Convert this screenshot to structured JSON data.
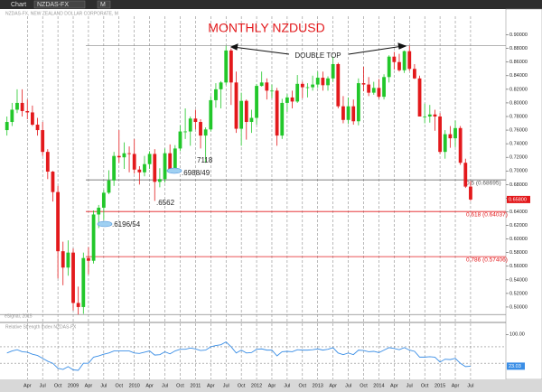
{
  "window": {
    "title": "Chart",
    "symbol": "NZDAS-FX",
    "interval": "M",
    "header": "NZDAS-FX, NEW ZEALAND DOLLAR CORPORATE, M",
    "watermark": "eSignal, 2015"
  },
  "chart_data": [
    {
      "type": "candlestick",
      "title": "MONTHLY NZDUSD",
      "categories": [
        null,
        null,
        null,
        null,
        "Apr",
        null,
        null,
        "Jul",
        null,
        null,
        "Oct",
        null,
        null,
        "2009",
        null,
        null,
        "Apr",
        null,
        null,
        "Jul",
        null,
        null,
        "Oct",
        null,
        null,
        "2010",
        null,
        null,
        "Apr",
        null,
        null,
        "Jul",
        null,
        null,
        "Oct",
        null,
        null,
        "2011",
        null,
        null,
        "Apr",
        null,
        null,
        "Jul",
        null,
        null,
        "Oct",
        null,
        null,
        "2012",
        null,
        null,
        "Apr",
        null,
        null,
        "Jul",
        null,
        null,
        "Oct",
        null,
        null,
        "2013",
        null,
        null,
        "Apr",
        null,
        null,
        "Jul",
        null,
        null,
        "Oct",
        null,
        null,
        "2014",
        null,
        null,
        "Apr",
        null,
        null,
        "Jul",
        null,
        null,
        "Oct",
        null,
        null,
        "2015",
        null,
        null,
        "Apr",
        null,
        null,
        "Jul"
      ],
      "open": [
        0.76,
        0.772,
        0.79,
        0.8,
        0.788,
        0.786,
        0.768,
        0.76,
        0.728,
        0.699,
        0.669,
        0.582,
        0.558,
        0.58,
        0.506,
        0.5,
        0.572,
        0.568,
        0.636,
        0.646,
        0.668,
        0.686,
        0.722,
        0.72,
        0.726,
        0.725,
        0.702,
        0.698,
        0.71,
        0.725,
        0.684,
        0.688,
        0.726,
        0.702,
        0.733,
        0.758,
        0.758,
        0.777,
        0.772,
        0.752,
        0.761,
        0.804,
        0.82,
        0.83,
        0.877,
        0.83,
        0.762,
        0.803,
        0.772,
        0.778,
        0.825,
        0.83,
        0.818,
        0.818,
        0.752,
        0.8,
        0.808,
        0.802,
        0.828,
        0.823,
        0.823,
        0.827,
        0.837,
        0.826,
        0.836,
        0.857,
        0.795,
        0.775,
        0.795,
        0.773,
        0.829,
        0.827,
        0.815,
        0.822,
        0.809,
        0.838,
        0.868,
        0.86,
        0.848,
        0.876,
        0.85,
        0.836,
        0.78,
        0.78,
        0.783,
        0.78,
        0.728,
        0.754,
        0.748,
        0.763,
        0.712,
        0.677
      ],
      "high": [
        0.78,
        0.8,
        0.82,
        0.82,
        0.805,
        0.796,
        0.778,
        0.772,
        0.732,
        0.7,
        0.678,
        0.596,
        0.598,
        0.586,
        0.53,
        0.58,
        0.588,
        0.642,
        0.65,
        0.672,
        0.701,
        0.728,
        0.76,
        0.742,
        0.736,
        0.747,
        0.707,
        0.722,
        0.729,
        0.732,
        0.704,
        0.733,
        0.739,
        0.738,
        0.767,
        0.792,
        0.78,
        0.79,
        0.776,
        0.764,
        0.81,
        0.829,
        0.832,
        0.884,
        0.88,
        0.846,
        0.815,
        0.805,
        0.79,
        0.828,
        0.846,
        0.836,
        0.827,
        0.822,
        0.806,
        0.813,
        0.818,
        0.841,
        0.831,
        0.829,
        0.84,
        0.846,
        0.846,
        0.839,
        0.868,
        0.859,
        0.81,
        0.808,
        0.805,
        0.836,
        0.853,
        0.838,
        0.831,
        0.835,
        0.842,
        0.87,
        0.875,
        0.872,
        0.877,
        0.884,
        0.857,
        0.84,
        0.799,
        0.797,
        0.79,
        0.785,
        0.76,
        0.766,
        0.774,
        0.766,
        0.718,
        0.685
      ],
      "low": [
        0.752,
        0.766,
        0.785,
        0.78,
        0.776,
        0.766,
        0.752,
        0.722,
        0.688,
        0.655,
        0.542,
        0.532,
        0.546,
        0.495,
        0.489,
        0.49,
        0.548,
        0.564,
        0.616,
        0.628,
        0.666,
        0.678,
        0.712,
        0.703,
        0.698,
        0.696,
        0.68,
        0.692,
        0.703,
        0.656,
        0.676,
        0.683,
        0.698,
        0.7,
        0.729,
        0.747,
        0.737,
        0.761,
        0.733,
        0.712,
        0.758,
        0.793,
        0.792,
        0.826,
        0.797,
        0.756,
        0.737,
        0.746,
        0.756,
        0.768,
        0.824,
        0.805,
        0.807,
        0.737,
        0.747,
        0.787,
        0.792,
        0.8,
        0.807,
        0.808,
        0.818,
        0.822,
        0.818,
        0.818,
        0.831,
        0.792,
        0.77,
        0.769,
        0.768,
        0.767,
        0.817,
        0.81,
        0.812,
        0.806,
        0.805,
        0.83,
        0.849,
        0.846,
        0.844,
        0.847,
        0.835,
        0.78,
        0.77,
        0.771,
        0.759,
        0.725,
        0.718,
        0.734,
        0.735,
        0.709,
        0.675,
        0.656
      ],
      "close": [
        0.772,
        0.79,
        0.8,
        0.788,
        0.786,
        0.768,
        0.76,
        0.728,
        0.699,
        0.669,
        0.582,
        0.558,
        0.58,
        0.506,
        0.5,
        0.572,
        0.568,
        0.636,
        0.646,
        0.668,
        0.686,
        0.722,
        0.72,
        0.726,
        0.725,
        0.702,
        0.698,
        0.71,
        0.725,
        0.684,
        0.688,
        0.726,
        0.702,
        0.733,
        0.758,
        0.758,
        0.777,
        0.772,
        0.752,
        0.761,
        0.804,
        0.82,
        0.83,
        0.877,
        0.83,
        0.762,
        0.803,
        0.772,
        0.778,
        0.825,
        0.83,
        0.818,
        0.818,
        0.752,
        0.8,
        0.808,
        0.802,
        0.828,
        0.823,
        0.823,
        0.827,
        0.837,
        0.826,
        0.836,
        0.857,
        0.795,
        0.775,
        0.795,
        0.773,
        0.829,
        0.827,
        0.815,
        0.822,
        0.809,
        0.838,
        0.868,
        0.86,
        0.848,
        0.876,
        0.85,
        0.836,
        0.78,
        0.78,
        0.783,
        0.78,
        0.728,
        0.754,
        0.748,
        0.763,
        0.712,
        0.677,
        0.658
      ],
      "up_color": "#22c72a",
      "down_color": "#e3191c",
      "last_label": {
        "value": 0.658,
        "label": "0.65800"
      },
      "ylim": [
        0.48,
        0.926
      ],
      "yticks": [
        {
          "value": 0.5,
          "label": "0.50000"
        },
        {
          "value": 0.52,
          "label": "0.52000"
        },
        {
          "value": 0.54,
          "label": "0.54000"
        },
        {
          "value": 0.56,
          "label": "0.56000"
        },
        {
          "value": 0.58,
          "label": "0.58000"
        },
        {
          "value": 0.6,
          "label": "0.60000"
        },
        {
          "value": 0.62,
          "label": "0.62000"
        },
        {
          "value": 0.64,
          "label": "0.64000"
        },
        {
          "value": 0.66,
          "label": "0.66000"
        },
        {
          "value": 0.68,
          "label": "0.68000"
        },
        {
          "value": 0.7,
          "label": "0.70000"
        },
        {
          "value": 0.72,
          "label": "0.72000"
        },
        {
          "value": 0.74,
          "label": "0.74000"
        },
        {
          "value": 0.76,
          "label": "0.76000"
        },
        {
          "value": 0.78,
          "label": "0.78000"
        },
        {
          "value": 0.8,
          "label": "0.80000"
        },
        {
          "value": 0.82,
          "label": "0.82000"
        },
        {
          "value": 0.84,
          "label": "0.84000"
        },
        {
          "value": 0.86,
          "label": "0.86000"
        },
        {
          "value": 0.88,
          "label": "0.88000"
        },
        {
          "value": 0.9,
          "label": "0.90000"
        }
      ],
      "fib_levels": [
        {
          "value": 0.68695,
          "label": "0.5 (0.68695)",
          "color": "#555555"
        },
        {
          "value": 0.64037,
          "label": "0.618 (0.64037)",
          "color": "#e3191c"
        },
        {
          "value": 0.57406,
          "label": "0.786 (0.57406)",
          "color": "#e3191c"
        }
      ],
      "reference_lines": [
        0.8843,
        0.489
      ],
      "annotations": [
        "DOUBLE TOP",
        "7118",
        ".6988/49",
        ".6562",
        ".6196/54"
      ]
    },
    {
      "type": "line",
      "name": "Relative Strength Index NZDAS-FX",
      "color": "#3a8ee6",
      "values": [
        55,
        60,
        63,
        58,
        57,
        52,
        49,
        42,
        35,
        30,
        18,
        15,
        22,
        14,
        13,
        30,
        30,
        45,
        48,
        52,
        55,
        60,
        60,
        60,
        60,
        55,
        54,
        57,
        60,
        50,
        51,
        58,
        53,
        60,
        64,
        64,
        67,
        65,
        61,
        62,
        70,
        73,
        75,
        82,
        70,
        55,
        62,
        55,
        56,
        64,
        65,
        62,
        62,
        48,
        58,
        59,
        58,
        63,
        62,
        62,
        63,
        65,
        62,
        64,
        68,
        55,
        51,
        55,
        51,
        62,
        61,
        58,
        59,
        56,
        62,
        68,
        66,
        63,
        68,
        62,
        59,
        45,
        45,
        46,
        45,
        33,
        40,
        39,
        42,
        30,
        22,
        23.03
      ],
      "ylim": [
        -9,
        116
      ],
      "yticks": [
        {
          "value": 100,
          "label": "100.00"
        }
      ],
      "reference_lines": [
        70,
        30
      ]
    }
  ]
}
